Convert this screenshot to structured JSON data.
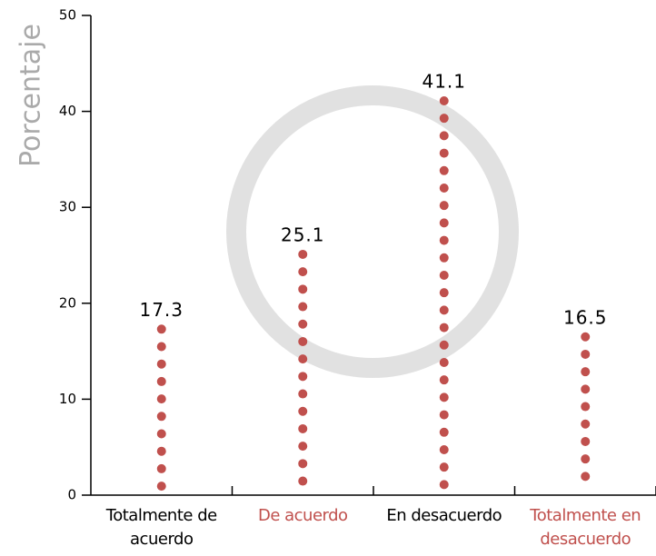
{
  "chart_data": {
    "type": "dot-column",
    "y_label": "Porcentaje",
    "categories": [
      "Totalmente de acuerdo",
      "De acuerdo",
      "En desacuerdo",
      "Totalmente en desacuerdo"
    ],
    "category_label_colors": [
      "#000000",
      "#c0504d",
      "#000000",
      "#c0504d"
    ],
    "values": [
      17.3,
      25.1,
      41.1,
      16.5
    ],
    "color": "#c0504d",
    "ylim": [
      0,
      50
    ],
    "yticks": [
      0,
      10,
      20,
      30,
      40,
      50
    ]
  }
}
